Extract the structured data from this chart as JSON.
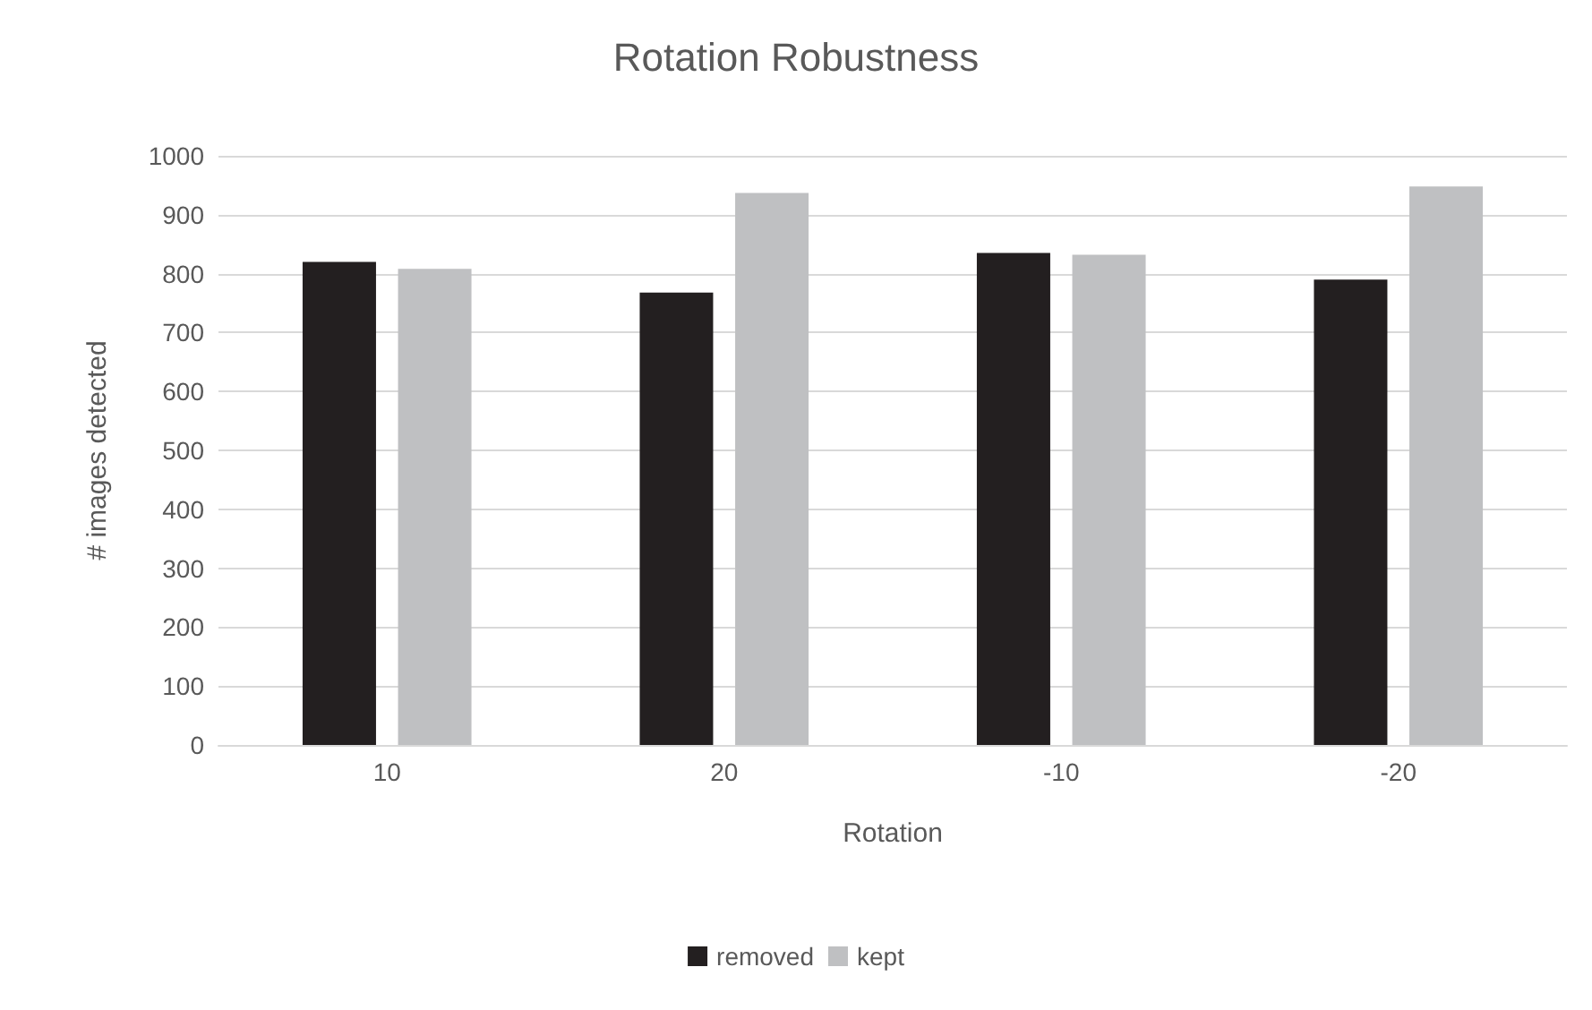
{
  "chart_data": {
    "type": "bar",
    "title": "Rotation Robustness",
    "xlabel": "Rotation",
    "ylabel": "# images detected",
    "categories": [
      "10",
      "20",
      "-10",
      "-20"
    ],
    "series": [
      {
        "name": "removed",
        "color": "#231f20",
        "values": [
          820,
          768,
          835,
          790
        ]
      },
      {
        "name": "kept",
        "color": "#bfc0c2",
        "values": [
          808,
          937,
          832,
          948
        ]
      }
    ],
    "ylim": [
      0,
      1000
    ],
    "yticks": [
      0,
      100,
      200,
      300,
      400,
      500,
      600,
      700,
      800,
      900,
      1000
    ],
    "grid": "y",
    "legend": "bottom"
  }
}
